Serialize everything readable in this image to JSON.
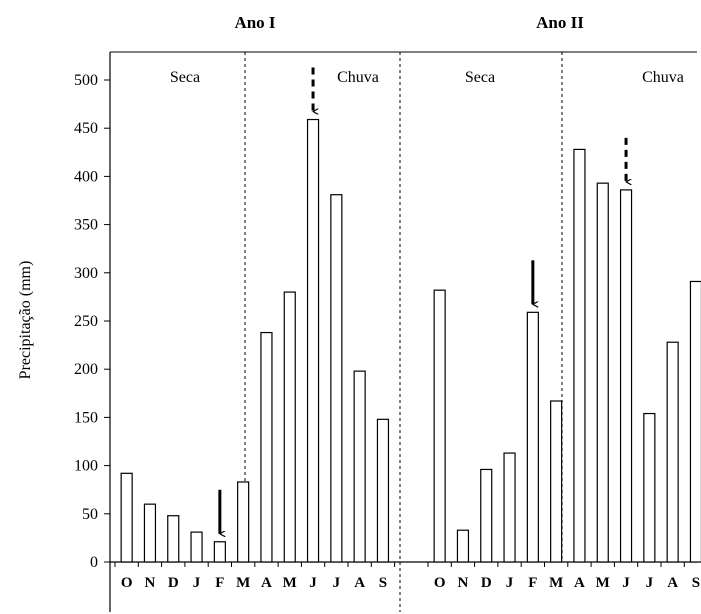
{
  "chart_data": [
    {
      "type": "bar",
      "title": "Ano I",
      "ylabel": "Precipitação (mm)",
      "xlabel": "",
      "ylim": [
        0,
        500
      ],
      "yticks": [
        0,
        50,
        100,
        150,
        200,
        250,
        300,
        350,
        400,
        450,
        500
      ],
      "categories": [
        "O",
        "N",
        "D",
        "J",
        "F",
        "M",
        "A",
        "M",
        "J",
        "J",
        "A",
        "S"
      ],
      "values": [
        92,
        60,
        48,
        31,
        21,
        83,
        238,
        280,
        459,
        381,
        198,
        148
      ],
      "periods": [
        {
          "label": "Seca",
          "months": [
            "O",
            "N",
            "D",
            "J",
            "F",
            "M"
          ]
        },
        {
          "label": "Chuva",
          "months": [
            "A",
            "M",
            "J",
            "J",
            "A",
            "S"
          ]
        }
      ],
      "annotations": [
        {
          "type": "solid-arrow",
          "category_index": 4
        },
        {
          "type": "dashed-arrow",
          "category_index": 8
        }
      ]
    },
    {
      "type": "bar",
      "title": "Ano II",
      "ylim": [
        0,
        500
      ],
      "categories": [
        "O",
        "N",
        "D",
        "J",
        "F",
        "M",
        "A",
        "M",
        "J",
        "J",
        "A",
        "S"
      ],
      "values": [
        282,
        33,
        96,
        113,
        259,
        167,
        428,
        393,
        386,
        154,
        228,
        291
      ],
      "periods": [
        {
          "label": "Seca",
          "months": [
            "O",
            "N",
            "D",
            "J",
            "F",
            "M"
          ]
        },
        {
          "label": "Chuva",
          "months": [
            "A",
            "M",
            "J",
            "J",
            "A",
            "S"
          ]
        }
      ],
      "annotations": [
        {
          "type": "solid-arrow",
          "category_index": 4
        },
        {
          "type": "dashed-arrow",
          "category_index": 8
        }
      ]
    }
  ]
}
